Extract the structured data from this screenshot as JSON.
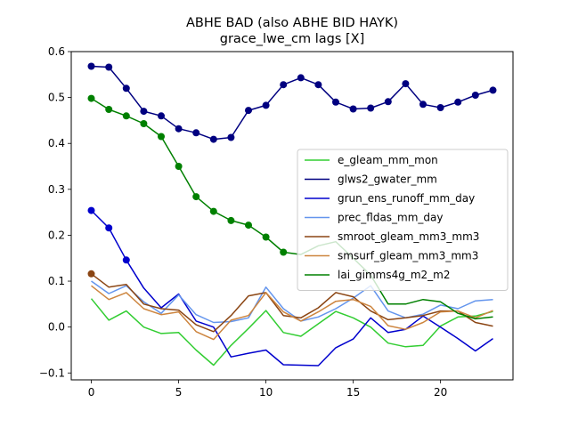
{
  "chart_data": {
    "type": "line",
    "title": "ABHE BAD (also ABHE BID HAYK)",
    "subtitle": "grace_lwe_cm lags [X]",
    "xlabel": "",
    "ylabel": "",
    "xlim": [
      -1.15,
      24.15
    ],
    "ylim": [
      -0.115,
      0.6
    ],
    "x_ticks": [
      0,
      5,
      10,
      15,
      20
    ],
    "y_ticks": [
      -0.1,
      0.0,
      0.1,
      0.2,
      0.3,
      0.4,
      0.5,
      0.6
    ],
    "y_tick_labels": [
      "−0.1",
      "0.0",
      "0.1",
      "0.2",
      "0.3",
      "0.4",
      "0.5",
      "0.6"
    ],
    "grid": false,
    "legend_position": "center-right",
    "x": [
      0,
      1,
      2,
      3,
      4,
      5,
      6,
      7,
      8,
      9,
      10,
      11,
      12,
      13,
      14,
      15,
      16,
      17,
      18,
      19,
      20,
      21,
      22,
      23
    ],
    "series": [
      {
        "name": "e_gleam_mm_mon",
        "color": "#32cd32",
        "marker_count": 0,
        "values": [
          0.062,
          0.015,
          0.035,
          0.0,
          -0.014,
          -0.012,
          -0.05,
          -0.083,
          -0.04,
          -0.003,
          0.036,
          -0.012,
          -0.02,
          0.007,
          0.034,
          0.02,
          0.0,
          -0.035,
          -0.043,
          -0.04,
          0.002,
          0.022,
          0.024,
          0.034
        ]
      },
      {
        "name": "glws2_gwater_mm",
        "color": "#000080",
        "marker_count": 24,
        "values": [
          0.568,
          0.566,
          0.52,
          0.47,
          0.46,
          0.432,
          0.423,
          0.409,
          0.413,
          0.472,
          0.483,
          0.528,
          0.543,
          0.528,
          0.49,
          0.475,
          0.477,
          0.491,
          0.53,
          0.485,
          0.478,
          0.49,
          0.505,
          0.516
        ]
      },
      {
        "name": "grun_ens_runoff_mm_day",
        "color": "#0000cd",
        "marker_count": 3,
        "values": [
          0.254,
          0.216,
          0.146,
          0.085,
          0.042,
          0.072,
          0.013,
          0.0,
          -0.065,
          -0.057,
          -0.05,
          -0.082,
          -0.083,
          -0.084,
          -0.045,
          -0.026,
          0.02,
          -0.012,
          -0.005,
          0.024,
          0.0,
          -0.025,
          -0.052,
          -0.025
        ]
      },
      {
        "name": "prec_fldas_mm_day",
        "color": "#6495ed",
        "marker_count": 0,
        "values": [
          0.1,
          0.073,
          0.09,
          0.055,
          0.03,
          0.07,
          0.027,
          0.01,
          0.012,
          0.02,
          0.087,
          0.04,
          0.013,
          0.022,
          0.04,
          0.063,
          0.09,
          0.035,
          0.02,
          0.028,
          0.048,
          0.04,
          0.057,
          0.06
        ]
      },
      {
        "name": "smroot_gleam_mm3_mm3",
        "color": "#8b4513",
        "marker_count": 1,
        "values": [
          0.116,
          0.087,
          0.093,
          0.05,
          0.04,
          0.037,
          0.005,
          -0.01,
          0.025,
          0.068,
          0.075,
          0.025,
          0.02,
          0.042,
          0.075,
          0.066,
          0.035,
          0.016,
          0.02,
          0.025,
          0.035,
          0.035,
          0.01,
          0.002
        ]
      },
      {
        "name": "smsurf_gleam_mm3_mm3",
        "color": "#cd853f",
        "marker_count": 0,
        "values": [
          0.09,
          0.06,
          0.075,
          0.04,
          0.027,
          0.033,
          -0.01,
          -0.027,
          0.015,
          0.025,
          0.075,
          0.033,
          0.013,
          0.033,
          0.056,
          0.06,
          0.045,
          0.003,
          -0.005,
          0.01,
          0.033,
          0.035,
          0.02,
          0.036
        ]
      },
      {
        "name": "lai_gimms4g_m2_m2",
        "color": "#008000",
        "marker_count": 12,
        "values": [
          0.498,
          0.474,
          0.46,
          0.443,
          0.415,
          0.35,
          0.284,
          0.252,
          0.232,
          0.222,
          0.196,
          0.163,
          0.158,
          0.177,
          0.186,
          0.15,
          0.113,
          0.05,
          0.05,
          0.06,
          0.055,
          0.03,
          0.018,
          0.022
        ]
      }
    ]
  }
}
